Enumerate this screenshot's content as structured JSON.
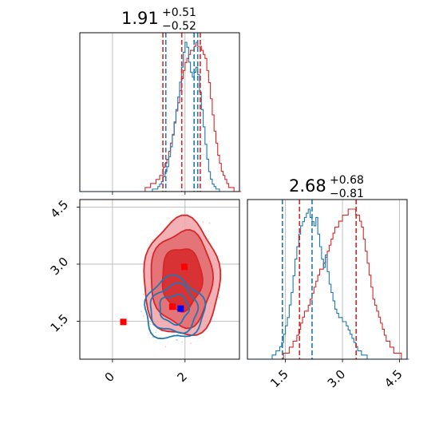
{
  "chart_data": {
    "type": "corner",
    "colors": {
      "red": "#d62728",
      "blue": "#1f77b4",
      "marker_blue": "#0000ff",
      "grid": "#b0b0b0"
    },
    "params": [
      {
        "name": "param1",
        "median": 1.91,
        "plus": "+0.51",
        "minus": "−0.52",
        "title_main": "1.91",
        "range": [
          -0.9,
          3.5
        ]
      },
      {
        "name": "param2",
        "median": 2.68,
        "plus": "+0.68",
        "minus": "−0.81",
        "title_main": "2.68",
        "range": [
          0.5,
          4.7
        ]
      }
    ],
    "x_ticks_param1": [
      {
        "value": 0,
        "label": "0"
      },
      {
        "value": 2,
        "label": "2"
      }
    ],
    "y_ticks_param2": [
      {
        "value": 1.5,
        "label": "1.5"
      },
      {
        "value": 3.0,
        "label": "3.0"
      },
      {
        "value": 4.5,
        "label": "4.5"
      }
    ],
    "x_ticks_param2": [
      {
        "value": 1.5,
        "label": "1.5"
      },
      {
        "value": 3.0,
        "label": "3.0"
      },
      {
        "value": 4.5,
        "label": "4.5"
      }
    ],
    "marginal_param1": {
      "quantile_lines": {
        "red": [
          1.39,
          1.91,
          2.42
        ],
        "blue": [
          1.47,
          2.25,
          2.35
        ]
      },
      "bins_start": -0.9,
      "bin_width": 0.05,
      "red_counts": [
        0,
        0,
        0,
        0,
        0,
        0,
        0,
        0,
        0,
        0,
        0,
        0,
        0,
        0,
        0,
        0,
        0,
        0,
        0,
        0,
        0,
        0,
        0,
        0,
        0,
        0,
        0,
        0,
        0,
        0,
        0,
        0,
        0,
        0,
        0,
        0,
        1,
        1,
        1,
        2,
        2,
        2,
        3,
        3,
        4,
        4,
        6,
        7,
        8,
        10,
        12,
        14,
        17,
        20,
        22,
        25,
        28,
        30,
        32,
        33,
        34,
        35,
        35,
        36,
        37,
        36,
        36,
        35,
        34,
        33,
        30,
        27,
        23,
        19,
        15,
        12,
        9,
        7,
        5,
        4,
        3,
        2,
        1,
        1,
        1,
        0,
        0,
        0,
        0
      ],
      "blue_counts": [
        0,
        0,
        0,
        0,
        0,
        0,
        0,
        0,
        0,
        0,
        0,
        0,
        0,
        0,
        0,
        0,
        0,
        0,
        0,
        0,
        0,
        0,
        0,
        0,
        0,
        0,
        0,
        0,
        0,
        0,
        0,
        0,
        0,
        0,
        0,
        0,
        0,
        0,
        0,
        0,
        1,
        1,
        1,
        2,
        3,
        4,
        6,
        8,
        10,
        14,
        18,
        23,
        28,
        33,
        38,
        44,
        50,
        56,
        60,
        58,
        52,
        48,
        46,
        48,
        50,
        47,
        40,
        33,
        26,
        19,
        13,
        8,
        5,
        3,
        2,
        1,
        1,
        0,
        0,
        0,
        0,
        0,
        0,
        0,
        0
      ]
    },
    "marginal_param2": {
      "quantile_lines": {
        "red": [
          1.87,
          3.36
        ],
        "blue": [
          1.42,
          2.2
        ]
      },
      "bins_start": 0.5,
      "bin_width": 0.05,
      "red_counts": [
        0,
        0,
        0,
        0,
        0,
        0,
        0,
        0,
        0,
        0,
        0,
        0,
        0,
        0,
        0,
        0,
        0,
        0,
        0,
        1,
        1,
        1,
        2,
        2,
        3,
        3,
        4,
        5,
        6,
        7,
        8,
        8,
        9,
        10,
        11,
        12,
        13,
        14,
        15,
        15,
        16,
        17,
        18,
        19,
        20,
        21,
        22,
        22,
        23,
        23,
        24,
        24,
        24,
        25,
        25,
        25,
        25,
        24,
        24,
        23,
        22,
        20,
        18,
        16,
        14,
        12,
        10,
        9,
        8,
        7,
        6,
        5,
        4,
        3,
        3,
        2,
        2,
        1,
        1,
        1,
        1,
        0,
        0,
        0
      ],
      "blue_counts": [
        0,
        0,
        0,
        0,
        0,
        0,
        0,
        0,
        0,
        0,
        0,
        0,
        0,
        1,
        1,
        2,
        2,
        3,
        4,
        6,
        8,
        10,
        13,
        16,
        20,
        24,
        27,
        30,
        32,
        33,
        34,
        35,
        36,
        34,
        33,
        32,
        34,
        30,
        27,
        24,
        22,
        25,
        21,
        18,
        16,
        14,
        12,
        11,
        10,
        10,
        9,
        9,
        8,
        7,
        6,
        5,
        4,
        3,
        2,
        2,
        1,
        1,
        1,
        0,
        0,
        0,
        0,
        0,
        0,
        0,
        0,
        0,
        0,
        0,
        0,
        0,
        0,
        0,
        0,
        0,
        0,
        0,
        0,
        0,
        0
      ]
    },
    "scatter_markers": [
      {
        "name": "red-square-left",
        "x": 0.3,
        "y": 1.48,
        "color": "#ff0000"
      },
      {
        "name": "red-square-mid",
        "x": 1.65,
        "y": 1.88,
        "color": "#ff0000"
      },
      {
        "name": "red-square-upper",
        "x": 1.98,
        "y": 2.93,
        "color": "#ff0000"
      },
      {
        "name": "blue-square",
        "x": 1.88,
        "y": 1.83,
        "color": "#0000ff"
      }
    ],
    "contours_red": {
      "center": [
        1.91,
        2.62
      ],
      "radii": [
        [
          0.55,
          0.82
        ],
        [
          0.85,
          1.25
        ],
        [
          1.05,
          1.55
        ]
      ]
    },
    "contours_blue": {
      "center": [
        1.7,
        1.82
      ],
      "radii": [
        [
          0.4,
          0.38
        ],
        [
          0.65,
          0.62
        ],
        [
          0.82,
          0.8
        ]
      ]
    }
  }
}
